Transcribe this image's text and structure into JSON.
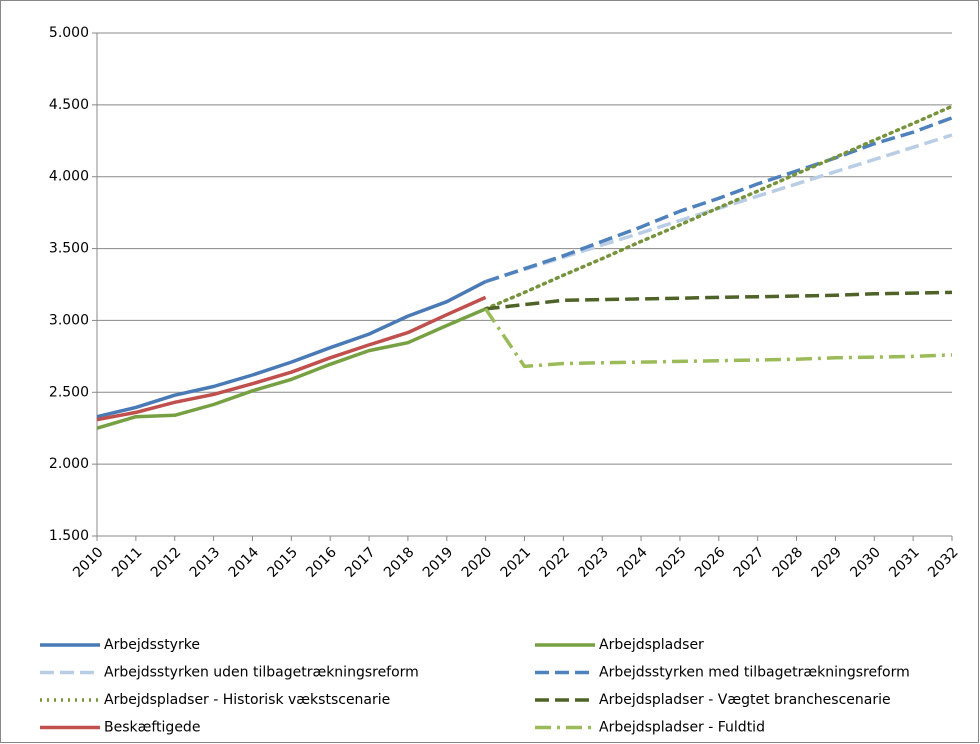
{
  "chart_data": {
    "type": "line",
    "categories": [
      "2010",
      "2011",
      "2012",
      "2013",
      "2014",
      "2015",
      "2016",
      "2017",
      "2018",
      "2019",
      "2020",
      "2021",
      "2022",
      "2023",
      "2024",
      "2025",
      "2026",
      "2027",
      "2028",
      "2029",
      "2030",
      "2031",
      "2032"
    ],
    "ylim": [
      1500,
      5000
    ],
    "yticks": [
      {
        "value": 1500,
        "label": "1.500"
      },
      {
        "value": 2000,
        "label": "2.000"
      },
      {
        "value": 2500,
        "label": "2.500"
      },
      {
        "value": 3000,
        "label": "3.000"
      },
      {
        "value": 3500,
        "label": "3.500"
      },
      {
        "value": 4000,
        "label": "4.000"
      },
      {
        "value": 4500,
        "label": "4.500"
      },
      {
        "value": 5000,
        "label": "5.000"
      }
    ],
    "grid": true,
    "legend": "bottom",
    "series": [
      {
        "name": "Arbejdsstyrke",
        "color": "#4a7ab5",
        "dash": "solid",
        "values": [
          2330,
          2395,
          2480,
          2540,
          2620,
          2710,
          2810,
          2905,
          3030,
          3130,
          3270,
          null,
          null,
          null,
          null,
          null,
          null,
          null,
          null,
          null,
          null,
          null,
          null
        ]
      },
      {
        "name": "Arbejdspladser",
        "color": "#77a043",
        "dash": "solid",
        "values": [
          2250,
          2330,
          2340,
          2415,
          2510,
          2590,
          2695,
          2790,
          2845,
          2965,
          3080,
          null,
          null,
          null,
          null,
          null,
          null,
          null,
          null,
          null,
          null,
          null,
          null
        ]
      },
      {
        "name": "Arbejdsstyrken uden tilbagetrækningsreform",
        "color": "#b9cde5",
        "dash": "dashed",
        "values": [
          null,
          null,
          null,
          null,
          null,
          null,
          null,
          null,
          null,
          null,
          3270,
          3355,
          3440,
          3525,
          3610,
          3695,
          3780,
          3865,
          3950,
          4035,
          4120,
          4205,
          4290
        ]
      },
      {
        "name": "Arbejdsstyrken med tilbagetrækningsreform",
        "color": "#4f81bd",
        "dash": "dashed",
        "values": [
          null,
          null,
          null,
          null,
          null,
          null,
          null,
          null,
          null,
          null,
          3270,
          3360,
          3450,
          3550,
          3650,
          3760,
          3850,
          3950,
          4040,
          4130,
          4230,
          4310,
          4410
        ]
      },
      {
        "name": "Arbejdspladser - Historisk vækstscenarie",
        "color": "#77933c",
        "dash": "dotted",
        "values": [
          null,
          null,
          null,
          null,
          null,
          null,
          null,
          null,
          null,
          null,
          3080,
          3195,
          3315,
          3430,
          3550,
          3665,
          3785,
          3900,
          4020,
          4135,
          4255,
          4370,
          4490
        ]
      },
      {
        "name": "Arbejdspladser - Vægtet branchescenarie",
        "color": "#4f6228",
        "dash": "dashed",
        "values": [
          null,
          null,
          null,
          null,
          null,
          null,
          null,
          null,
          null,
          null,
          3080,
          3110,
          3140,
          3145,
          3150,
          3155,
          3160,
          3165,
          3170,
          3175,
          3185,
          3190,
          3195
        ]
      },
      {
        "name": "Beskæftigede",
        "color": "#c0504d",
        "dash": "solid",
        "values": [
          2310,
          2360,
          2430,
          2485,
          2560,
          2640,
          2740,
          2830,
          2915,
          3040,
          3160,
          null,
          null,
          null,
          null,
          null,
          null,
          null,
          null,
          null,
          null,
          null,
          null
        ]
      },
      {
        "name": "Arbejdspladser - Fuldtid",
        "color": "#9bbb59",
        "dash": "dashdot",
        "values": [
          null,
          null,
          null,
          null,
          null,
          null,
          null,
          null,
          null,
          null,
          3080,
          2680,
          2700,
          2705,
          2710,
          2715,
          2720,
          2725,
          2730,
          2740,
          2745,
          2750,
          2760
        ]
      }
    ]
  }
}
